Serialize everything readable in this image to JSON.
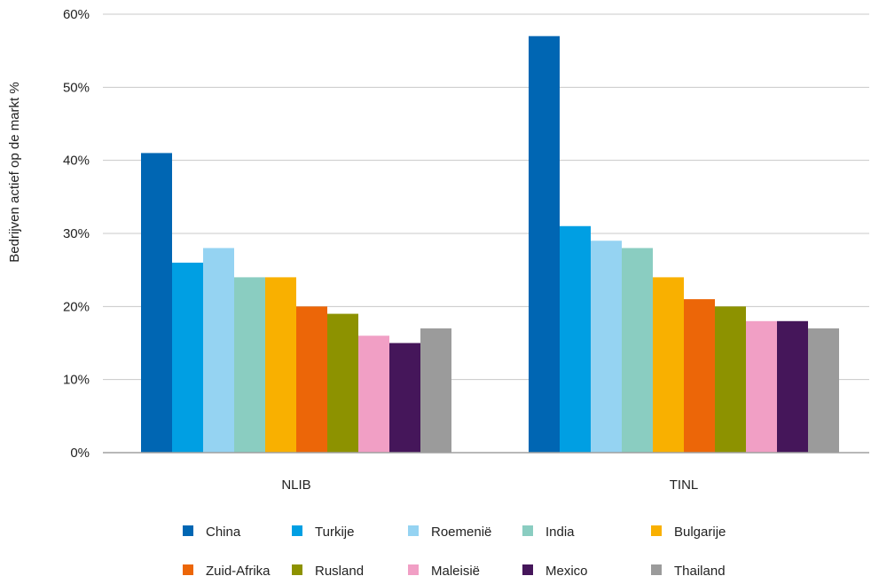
{
  "chart_data": {
    "type": "bar",
    "title": "",
    "xlabel": "",
    "ylabel": "Bedrijven actief op de markt %",
    "categories": [
      "NLIB",
      "TINL"
    ],
    "ylim": [
      0,
      60
    ],
    "yticks": [
      "0%",
      "10%",
      "20%",
      "30%",
      "40%",
      "50%",
      "60%"
    ],
    "grid": true,
    "legend_position": "bottom",
    "series": [
      {
        "name": "China",
        "color": "#0066b3",
        "values": [
          41,
          57
        ]
      },
      {
        "name": "Turkije",
        "color": "#009fe3",
        "values": [
          26,
          31
        ]
      },
      {
        "name": "Roemenië",
        "color": "#95d3f2",
        "values": [
          28,
          29
        ]
      },
      {
        "name": "India",
        "color": "#8acdc1",
        "values": [
          24,
          28
        ]
      },
      {
        "name": "Bulgarije",
        "color": "#f9b000",
        "values": [
          24,
          24
        ]
      },
      {
        "name": "Zuid-Afrika",
        "color": "#ec6608",
        "values": [
          20,
          21
        ]
      },
      {
        "name": "Rusland",
        "color": "#8d9200",
        "values": [
          19,
          20
        ]
      },
      {
        "name": "Maleisië",
        "color": "#f19fc5",
        "values": [
          16,
          18
        ]
      },
      {
        "name": "Mexico",
        "color": "#45165a",
        "values": [
          15,
          18
        ]
      },
      {
        "name": "Thailand",
        "color": "#9b9b9b",
        "values": [
          17,
          17
        ]
      }
    ]
  }
}
